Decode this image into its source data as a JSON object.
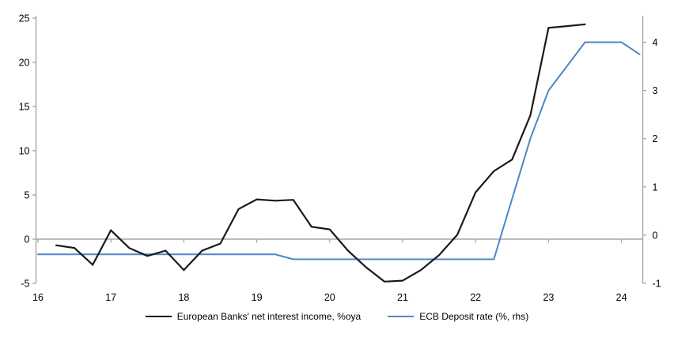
{
  "chart_data": {
    "type": "line",
    "title": "",
    "xlabel": "",
    "grid": false,
    "legend_position": "bottom",
    "x_axis": {
      "ticks": [
        16,
        17,
        18,
        19,
        20,
        21,
        22,
        23,
        24
      ],
      "range": [
        16,
        24.3
      ]
    },
    "left_axis": {
      "ticks": [
        25,
        20,
        15,
        10,
        5,
        0,
        -5
      ],
      "range": [
        -5,
        25
      ]
    },
    "right_axis": {
      "ticks": [
        4,
        3,
        2,
        1,
        0,
        -1
      ],
      "range": [
        -1,
        4.5
      ]
    },
    "colors": {
      "axis_gray": "#a6a6a6",
      "series_black": "#1a1a1a",
      "series_blue": "#4e87c5",
      "text": "#000000"
    },
    "series": [
      {
        "name": "European Banks' net interest income, %oya",
        "axis": "left",
        "color": "#1a1a1a",
        "x": [
          16.25,
          16.5,
          16.75,
          17.0,
          17.25,
          17.5,
          17.75,
          18.0,
          18.25,
          18.5,
          18.75,
          19.0,
          19.25,
          19.5,
          19.75,
          20.0,
          20.25,
          20.5,
          20.75,
          21.0,
          21.25,
          21.5,
          21.75,
          22.0,
          22.25,
          22.5,
          22.75,
          23.0,
          23.25,
          23.5
        ],
        "values": [
          -0.7,
          -1.0,
          -2.9,
          1.0,
          -1.0,
          -1.9,
          -1.3,
          -3.5,
          -1.3,
          -0.5,
          3.4,
          4.5,
          4.35,
          4.45,
          1.4,
          1.1,
          -1.3,
          -3.2,
          -4.8,
          -4.7,
          -3.5,
          -1.8,
          0.5,
          5.3,
          7.7,
          9.0,
          14.0,
          23.9,
          24.1,
          24.3
        ]
      },
      {
        "name": "ECB Deposit rate (%, rhs)",
        "axis": "right",
        "color": "#4e87c5",
        "x": [
          16.0,
          16.25,
          16.5,
          16.75,
          17.0,
          17.25,
          17.5,
          17.75,
          18.0,
          18.25,
          18.5,
          18.75,
          19.0,
          19.25,
          19.5,
          19.75,
          20.0,
          20.25,
          20.5,
          20.75,
          21.0,
          21.25,
          21.5,
          21.75,
          22.0,
          22.25,
          22.5,
          22.75,
          23.0,
          23.25,
          23.5,
          23.75,
          24.0,
          24.25
        ],
        "values": [
          -0.4,
          -0.4,
          -0.4,
          -0.4,
          -0.4,
          -0.4,
          -0.4,
          -0.4,
          -0.4,
          -0.4,
          -0.4,
          -0.4,
          -0.4,
          -0.4,
          -0.5,
          -0.5,
          -0.5,
          -0.5,
          -0.5,
          -0.5,
          -0.5,
          -0.5,
          -0.5,
          -0.5,
          -0.5,
          -0.5,
          0.75,
          2.0,
          3.0,
          3.5,
          4.0,
          4.0,
          4.0,
          3.75
        ]
      }
    ]
  }
}
